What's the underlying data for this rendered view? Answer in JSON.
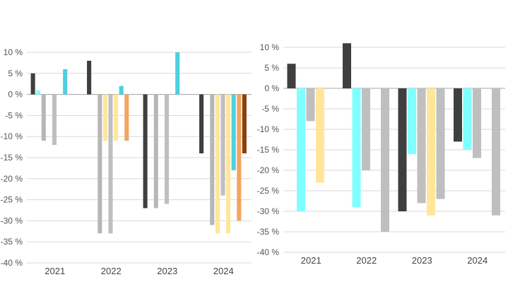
{
  "chart_data": [
    {
      "type": "bar",
      "title": "",
      "xlabel": "",
      "ylabel": "",
      "ylim": [
        -40,
        10
      ],
      "yticks": [
        "10 %",
        "5 %",
        "0 %",
        "-5 %",
        "-10 %",
        "-15 %",
        "-20 %",
        "-25 %",
        "-30 %",
        "-35 %",
        "-40 %"
      ],
      "ytick_values": [
        10,
        5,
        0,
        -5,
        -10,
        -15,
        -20,
        -25,
        -30,
        -35,
        -40
      ],
      "grid": true,
      "legend_position": "bottom",
      "categories": [
        "2021",
        "2022",
        "2023",
        "2024"
      ],
      "series": [
        {
          "name": "",
          "color": "#3f3f3f",
          "values": [
            5,
            8,
            -27,
            -14
          ]
        },
        {
          "name": "",
          "color": "#7fffff",
          "values": [
            1,
            0,
            0,
            0
          ]
        },
        {
          "name": "",
          "color": "#b7b7b7",
          "values": [
            -11,
            -33,
            -27,
            -31
          ]
        },
        {
          "name": "",
          "color": "#ffe699",
          "values": [
            0,
            -11,
            0,
            -33
          ]
        },
        {
          "name": "",
          "color": "#bfbfbf",
          "values": [
            -12,
            -33,
            -26,
            -24
          ]
        },
        {
          "name": "",
          "color": "#ffe699",
          "values": [
            0,
            -11,
            0,
            -33
          ]
        },
        {
          "name": "",
          "color": "#4dd0e1",
          "values": [
            6,
            2,
            10,
            -18
          ]
        },
        {
          "name": "",
          "color": "#f4a460",
          "values": [
            0,
            -11,
            0,
            -30
          ]
        },
        {
          "name": "",
          "color": "#8b3e0f",
          "values": [
            0,
            0,
            0,
            -14
          ]
        }
      ]
    },
    {
      "type": "bar",
      "title": "",
      "xlabel": "",
      "ylabel": "",
      "ylim": [
        -40,
        10
      ],
      "yticks": [
        "10 %",
        "5 %",
        "0 %",
        "-5 %",
        "-10 %",
        "-15 %",
        "-20 %",
        "-25 %",
        "-30 %",
        "-35 %",
        "-40 %"
      ],
      "ytick_values": [
        10,
        5,
        0,
        -5,
        -10,
        -15,
        -20,
        -25,
        -30,
        -35,
        -40
      ],
      "grid": true,
      "legend_position": "bottom",
      "categories": [
        "2021",
        "2022",
        "2023",
        "2024"
      ],
      "series": [
        {
          "name": "",
          "color": "#3f3f3f",
          "values": [
            6,
            11,
            -30,
            -13
          ]
        },
        {
          "name": "",
          "color": "#7fffff",
          "values": [
            -30,
            -29,
            -16,
            -15
          ]
        },
        {
          "name": "",
          "color": "#bfbfbf",
          "values": [
            -8,
            -20,
            -28,
            -17
          ]
        },
        {
          "name": "",
          "color": "#ffe699",
          "values": [
            -23,
            0,
            -31,
            0
          ]
        },
        {
          "name": "",
          "color": "#bfbfbf",
          "values": [
            0,
            -35,
            -27,
            -31
          ]
        }
      ]
    }
  ]
}
